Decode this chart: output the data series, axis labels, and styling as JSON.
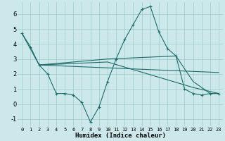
{
  "xlabel": "Humidex (Indice chaleur)",
  "bg_color": "#cce8ea",
  "grid_color": "#99cccc",
  "line_color": "#1e6b6b",
  "xlim": [
    -0.5,
    23.5
  ],
  "ylim": [
    -1.5,
    6.8
  ],
  "xticks": [
    0,
    1,
    2,
    3,
    4,
    5,
    6,
    7,
    8,
    9,
    10,
    11,
    12,
    13,
    14,
    15,
    16,
    17,
    18,
    19,
    20,
    21,
    22,
    23
  ],
  "yticks": [
    -1,
    0,
    1,
    2,
    3,
    4,
    5,
    6
  ],
  "line1_x": [
    0,
    1,
    2,
    3,
    4,
    5,
    6,
    7,
    8,
    9,
    10,
    11,
    12,
    13,
    14,
    15,
    16,
    17,
    18,
    19,
    20,
    21,
    22,
    23
  ],
  "line1_y": [
    4.7,
    3.8,
    2.6,
    2.0,
    0.7,
    0.7,
    0.6,
    0.1,
    -1.2,
    -0.2,
    1.5,
    3.0,
    4.3,
    5.3,
    6.3,
    6.5,
    4.8,
    3.7,
    3.2,
    1.0,
    0.7,
    0.6,
    0.7,
    0.7
  ],
  "line2_x": [
    0,
    2,
    23
  ],
  "line2_y": [
    4.7,
    2.6,
    2.1
  ],
  "line3_x": [
    2,
    10,
    20,
    23
  ],
  "line3_y": [
    2.6,
    2.8,
    1.1,
    0.7
  ],
  "line4_x": [
    2,
    10,
    18,
    20,
    22,
    23
  ],
  "line4_y": [
    2.6,
    3.0,
    3.2,
    1.5,
    0.7,
    0.7
  ]
}
